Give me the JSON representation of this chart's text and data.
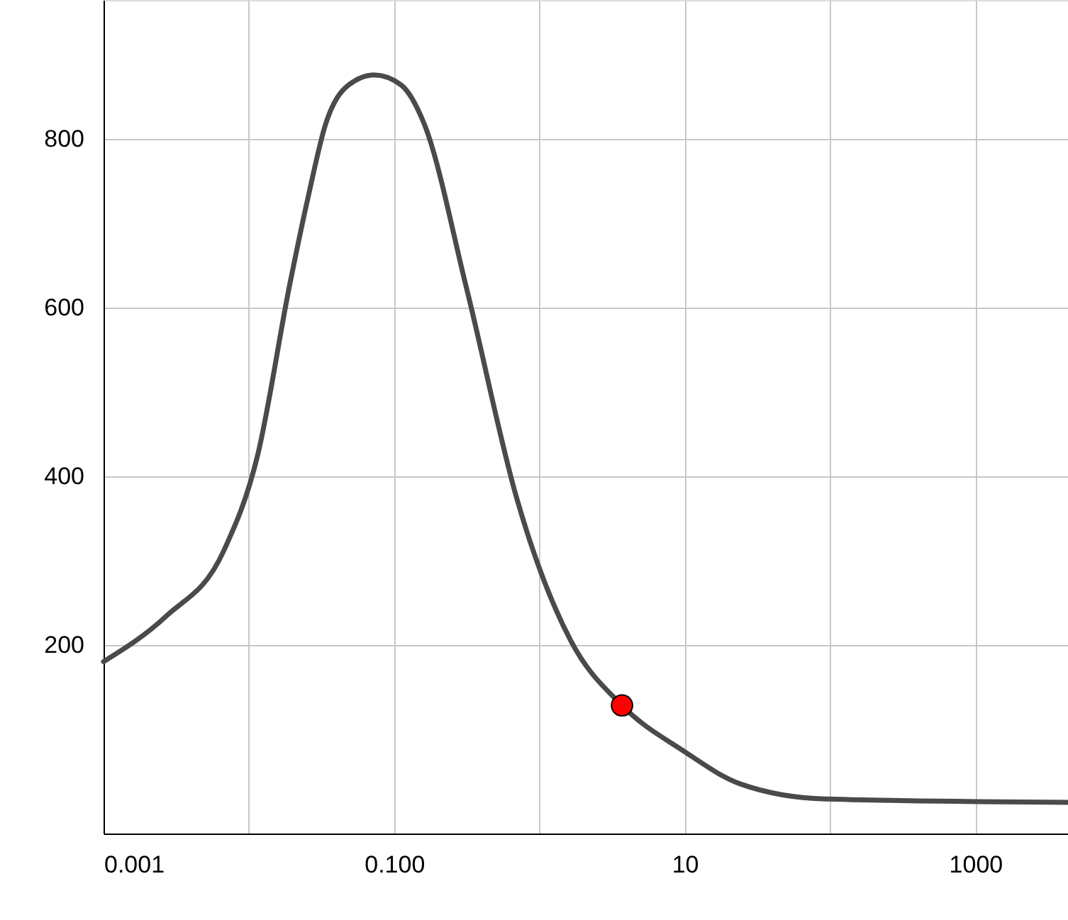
{
  "chart_data": {
    "type": "line",
    "log": "x",
    "xlim": [
      0.001,
      4340
    ],
    "ylim": [
      -24,
      965
    ],
    "xticks": [
      0.001,
      {
        "value": 0.01,
        "label": null
      },
      {
        "value": 0.1,
        "label": "0.100"
      },
      {
        "value": 1,
        "label": null
      },
      10,
      {
        "value": 100,
        "label": null
      },
      1000
    ],
    "yticks": [
      200,
      400,
      600,
      800
    ],
    "grid": true,
    "marker": "none",
    "line_style": "solid",
    "series": [
      {
        "color": "#4a4a4a",
        "x": [
          0.001,
          0.0027,
          0.0067,
          0.0115,
          0.0192,
          0.0258,
          0.0338,
          0.0485,
          0.073,
          0.112,
          0.161,
          0.316,
          0.7,
          0.82,
          1.64,
          3.7,
          9.8,
          24,
          93,
          4340
        ],
        "values": [
          180,
          234,
          311,
          425,
          629,
          734,
          818,
          864,
          876,
          864,
          818,
          622,
          373,
          334,
          205,
          128,
          74,
          35,
          17,
          13
        ]
      },
      {
        "type": "scatter",
        "color": "#ff0000",
        "marker": "circle",
        "x": [
          3.7
        ],
        "values": [
          128
        ]
      }
    ]
  }
}
